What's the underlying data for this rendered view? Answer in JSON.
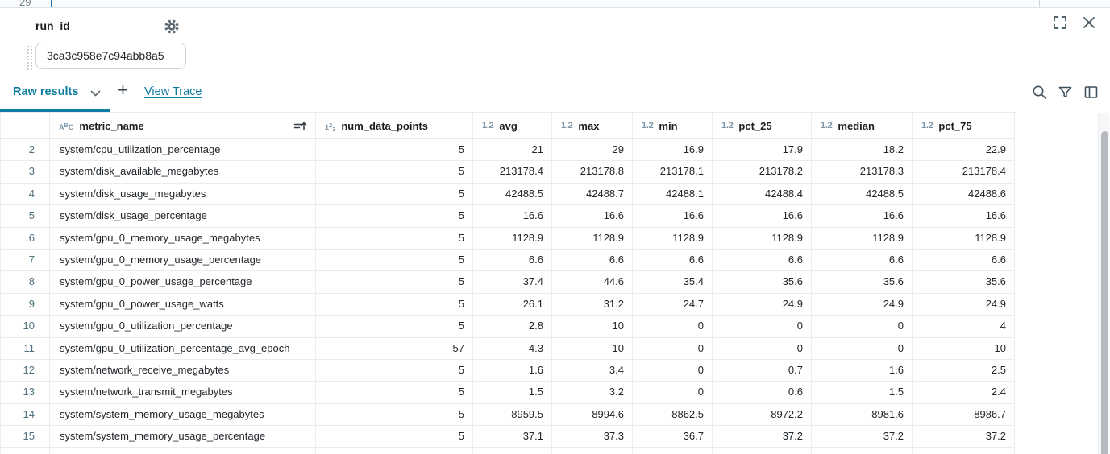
{
  "colors": {
    "accent": "#0d7ca0",
    "icon_slate": "#3f505c",
    "type_icon": "#7d95a6",
    "row_number": "#51707e",
    "border": "#e9edf0"
  },
  "editor": {
    "visible_line_number": "29"
  },
  "panel": {
    "title": "run_id",
    "run_id_value": "3ca3c958e7c94abb8a5",
    "gear_icon": "gear-icon",
    "expand_icon": "fullscreen-icon",
    "close_icon": "close-icon"
  },
  "tabs": {
    "active_label": "Raw results",
    "add_label": "+",
    "view_trace_label": "View Trace"
  },
  "toolbar": {
    "icons": [
      "search-icon",
      "filter-icon",
      "columns-icon"
    ]
  },
  "table": {
    "columns": [
      {
        "key": "row_num",
        "label": "",
        "type": "none"
      },
      {
        "key": "metric_name",
        "label": "metric_name",
        "type": "string",
        "sorted": true
      },
      {
        "key": "num_data_points",
        "label": "num_data_points",
        "type": "integer"
      },
      {
        "key": "avg",
        "label": "avg",
        "type": "float"
      },
      {
        "key": "max",
        "label": "max",
        "type": "float"
      },
      {
        "key": "min",
        "label": "min",
        "type": "float"
      },
      {
        "key": "pct_25",
        "label": "pct_25",
        "type": "float"
      },
      {
        "key": "median",
        "label": "median",
        "type": "float"
      },
      {
        "key": "pct_75",
        "label": "pct_75",
        "type": "float"
      }
    ],
    "rows": [
      [
        "2",
        "system/cpu_utilization_percentage",
        "5",
        "21",
        "29",
        "16.9",
        "17.9",
        "18.2",
        "22.9"
      ],
      [
        "3",
        "system/disk_available_megabytes",
        "5",
        "213178.4",
        "213178.8",
        "213178.1",
        "213178.2",
        "213178.3",
        "213178.4"
      ],
      [
        "4",
        "system/disk_usage_megabytes",
        "5",
        "42488.5",
        "42488.7",
        "42488.1",
        "42488.4",
        "42488.5",
        "42488.6"
      ],
      [
        "5",
        "system/disk_usage_percentage",
        "5",
        "16.6",
        "16.6",
        "16.6",
        "16.6",
        "16.6",
        "16.6"
      ],
      [
        "6",
        "system/gpu_0_memory_usage_megabytes",
        "5",
        "1128.9",
        "1128.9",
        "1128.9",
        "1128.9",
        "1128.9",
        "1128.9"
      ],
      [
        "7",
        "system/gpu_0_memory_usage_percentage",
        "5",
        "6.6",
        "6.6",
        "6.6",
        "6.6",
        "6.6",
        "6.6"
      ],
      [
        "8",
        "system/gpu_0_power_usage_percentage",
        "5",
        "37.4",
        "44.6",
        "35.4",
        "35.6",
        "35.6",
        "35.6"
      ],
      [
        "9",
        "system/gpu_0_power_usage_watts",
        "5",
        "26.1",
        "31.2",
        "24.7",
        "24.9",
        "24.9",
        "24.9"
      ],
      [
        "10",
        "system/gpu_0_utilization_percentage",
        "5",
        "2.8",
        "10",
        "0",
        "0",
        "0",
        "4"
      ],
      [
        "11",
        "system/gpu_0_utilization_percentage_avg_epoch",
        "57",
        "4.3",
        "10",
        "0",
        "0",
        "0",
        "10"
      ],
      [
        "12",
        "system/network_receive_megabytes",
        "5",
        "1.6",
        "3.4",
        "0",
        "0.7",
        "1.6",
        "2.5"
      ],
      [
        "13",
        "system/network_transmit_megabytes",
        "5",
        "1.5",
        "3.2",
        "0",
        "0.6",
        "1.5",
        "2.4"
      ],
      [
        "14",
        "system/system_memory_usage_megabytes",
        "5",
        "8959.5",
        "8994.6",
        "8862.5",
        "8972.2",
        "8981.6",
        "8986.7"
      ],
      [
        "15",
        "system/system_memory_usage_percentage",
        "5",
        "37.1",
        "37.3",
        "36.7",
        "37.2",
        "37.2",
        "37.2"
      ]
    ]
  }
}
